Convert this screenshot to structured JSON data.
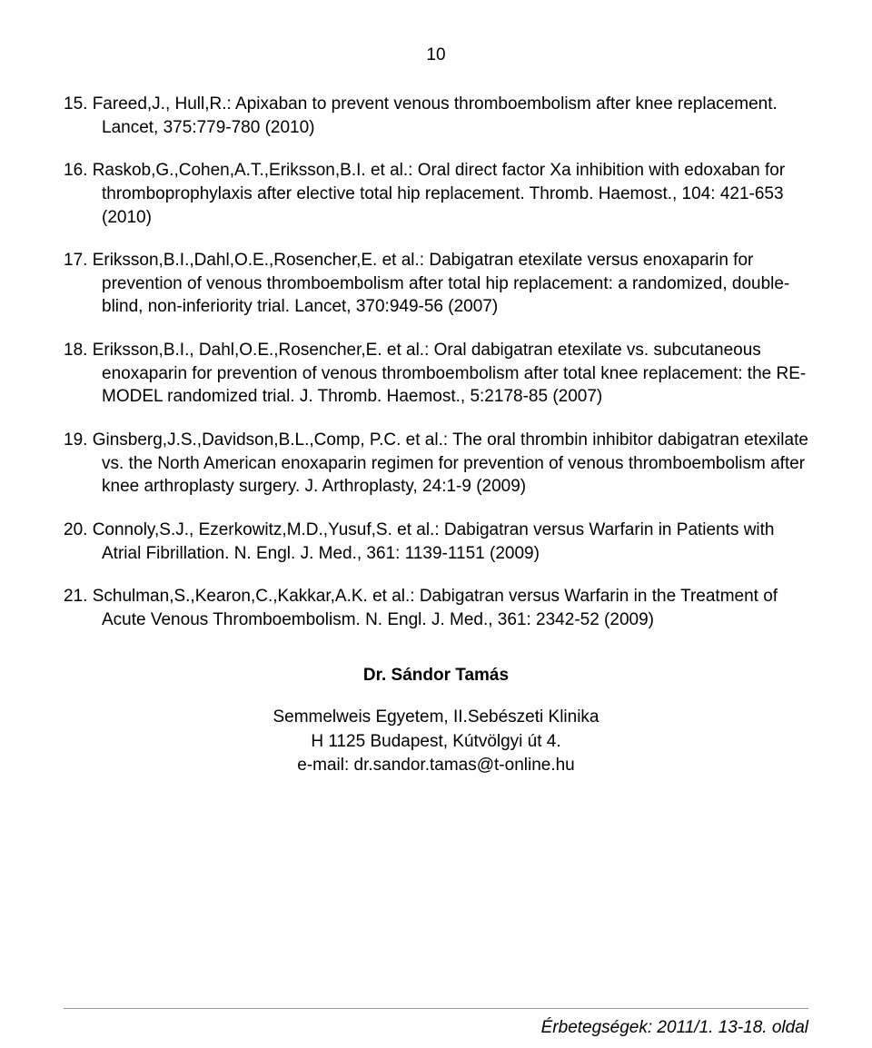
{
  "page_number": "10",
  "references": [
    {
      "num": "15.",
      "text": "Fareed,J., Hull,R.: Apixaban to prevent venous thromboembolism after knee replacement. Lancet, 375:779-780 (2010)"
    },
    {
      "num": "16.",
      "text": "Raskob,G.,Cohen,A.T.,Eriksson,B.I. et al.: Oral direct factor Xa inhibition with edoxaban for thromboprophylaxis after elective total hip replacement. Thromb. Haemost., 104: 421-653 (2010)"
    },
    {
      "num": "17.",
      "text": "Eriksson,B.I.,Dahl,O.E.,Rosencher,E. et al.: Dabigatran etexilate versus enoxaparin for prevention of venous thromboembolism after total hip replacement: a randomized, double-blind, non-inferiority trial. Lancet, 370:949-56 (2007)"
    },
    {
      "num": "18.",
      "text": "Eriksson,B.I., Dahl,O.E.,Rosencher,E. et al.: Oral dabigatran etexilate vs. subcutaneous enoxaparin for prevention of venous thromboembolism after total knee replacement: the RE-MODEL randomized trial. J. Thromb. Haemost., 5:2178-85 (2007)"
    },
    {
      "num": "19.",
      "text": "Ginsberg,J.S.,Davidson,B.L.,Comp, P.C. et al.: The oral thrombin inhibitor dabigatran etexilate vs. the North    American enoxaparin regimen for prevention of venous thromboembolism after knee arthroplasty surgery. J. Arthroplasty, 24:1-9 (2009)"
    },
    {
      "num": "20.",
      "text": "Connoly,S.J., Ezerkowitz,M.D.,Yusuf,S. et al.: Dabigatran versus Warfarin in Patients with Atrial Fibrillation. N. Engl. J. Med., 361: 1139-1151 (2009)"
    },
    {
      "num": "21.",
      "text": "Schulman,S.,Kearon,C.,Kakkar,A.K. et al.: Dabigatran versus Warfarin in the Treatment of Acute Venous Thromboembolism. N. Engl. J. Med., 361: 2342-52 (2009)"
    }
  ],
  "author": {
    "name": "Dr. Sándor Tamás",
    "affiliation": "Semmelweis Egyetem, II.Sebészeti Klinika",
    "address": "H 1125 Budapest, Kútvölgyi út 4.",
    "email": "e-mail: dr.sandor.tamas@t-online.hu"
  },
  "footer": "Érbetegségek: 2011/1. 13-18. oldal",
  "colors": {
    "text": "#000000",
    "background": "#ffffff",
    "divider": "#999999"
  },
  "fonts": {
    "body_size": 19,
    "family": "Arial"
  }
}
